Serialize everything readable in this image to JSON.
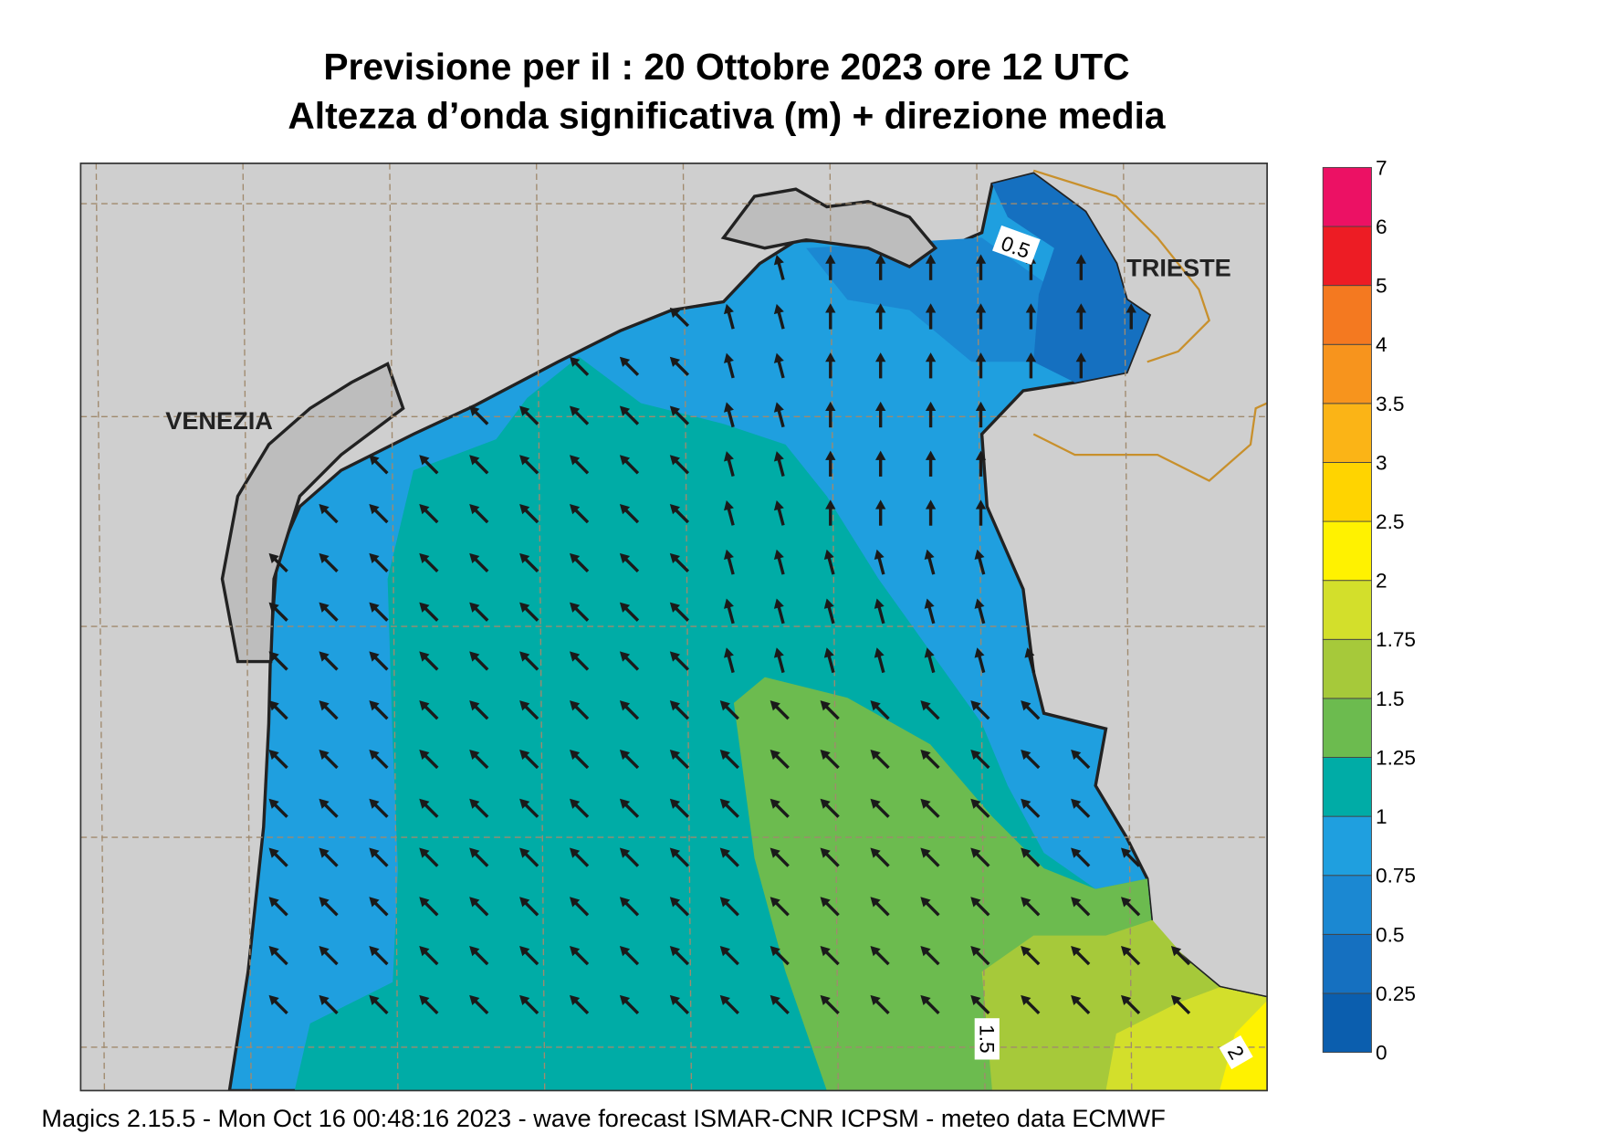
{
  "header": {
    "title_line1": "Previsione per il  :  20  Ottobre  2023   ore 12 UTC",
    "title_line2": "Altezza d’onda significativa (m) + direzione media"
  },
  "map": {
    "place_labels": [
      "VENEZIA",
      "TRIESTE"
    ],
    "contour_labels": [
      "0.5",
      "1.5",
      "2"
    ]
  },
  "colorbar": {
    "levels": [
      0,
      0.25,
      0.5,
      0.75,
      1,
      1.25,
      1.5,
      1.75,
      2,
      2.5,
      3,
      3.5,
      4,
      5,
      6,
      7
    ],
    "colors": [
      "#0b5eae",
      "#1570c0",
      "#1b88d2",
      "#1f9fdf",
      "#00aca6",
      "#6cbb4f",
      "#a6c93a",
      "#d3df2b",
      "#fff200",
      "#ffd400",
      "#fbb416",
      "#f7941d",
      "#f47920",
      "#ed1c24",
      "#ec1164"
    ]
  },
  "footer": "Magics 2.15.5 - Mon Oct 16 00:48:16 2023 - wave forecast  ISMAR-CNR  ICPSM - meteo data   ECMWF"
}
